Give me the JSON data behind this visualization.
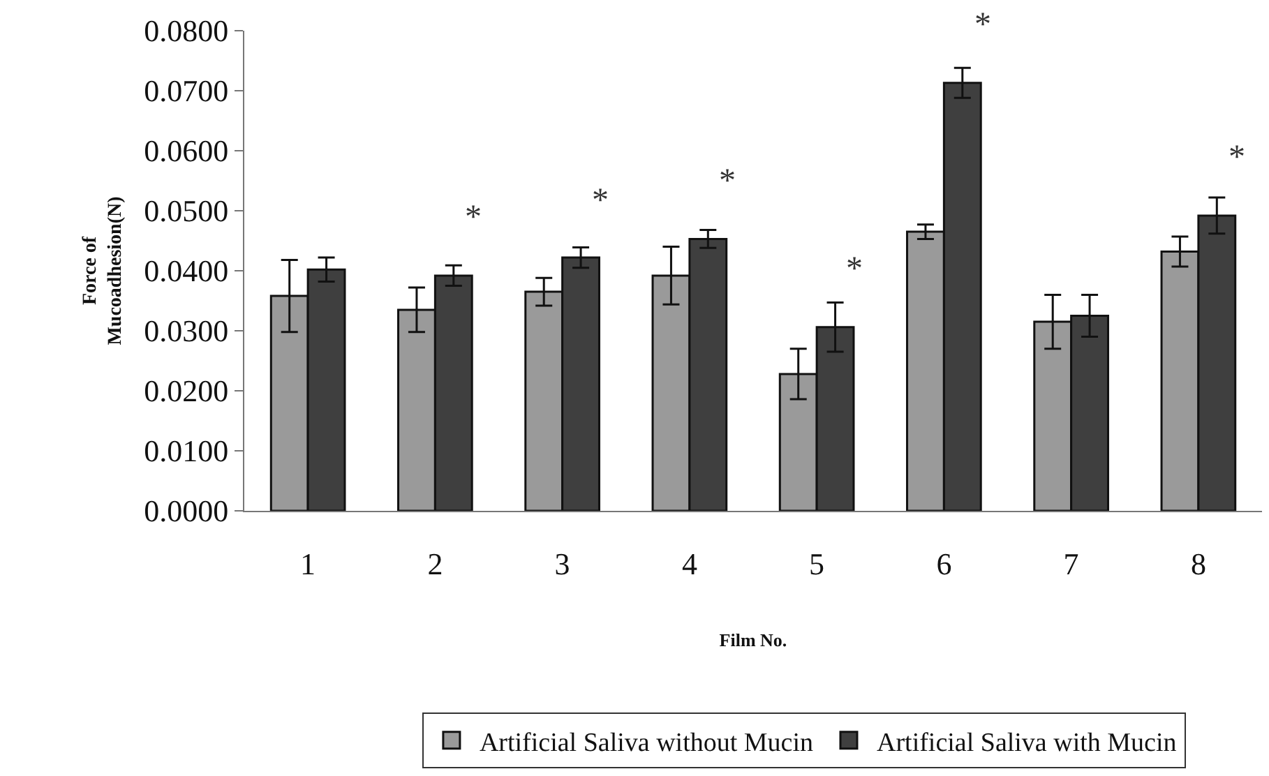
{
  "chart_data": {
    "type": "bar",
    "xlabel": "Film No.",
    "ylabel": "Force of Mucoadhesion(N)",
    "categories": [
      "1",
      "2",
      "3",
      "4",
      "5",
      "6",
      "7",
      "8"
    ],
    "series": [
      {
        "name": "Artificial Saliva without Mucin",
        "color": "#9a9a9a",
        "values": [
          0.0358,
          0.0335,
          0.0365,
          0.0392,
          0.0228,
          0.0465,
          0.0315,
          0.0432
        ],
        "errors": [
          0.006,
          0.0037,
          0.0023,
          0.0048,
          0.0042,
          0.0012,
          0.0045,
          0.0025
        ]
      },
      {
        "name": "Artificial Saliva with Mucin",
        "color": "#3f3f3f",
        "values": [
          0.0402,
          0.0392,
          0.0422,
          0.0453,
          0.0306,
          0.0713,
          0.0325,
          0.0492
        ],
        "errors": [
          0.002,
          0.0017,
          0.0017,
          0.0015,
          0.0041,
          0.0025,
          0.0035,
          0.003
        ]
      }
    ],
    "ylim": [
      0,
      0.08
    ],
    "yticks": [
      {
        "value": 0,
        "label": "0.0000"
      },
      {
        "value": 0.01,
        "label": "0.0100"
      },
      {
        "value": 0.02,
        "label": "0.0200"
      },
      {
        "value": 0.03,
        "label": "0.0300"
      },
      {
        "value": 0.04,
        "label": "0.0400"
      },
      {
        "value": 0.05,
        "label": "0.0500"
      },
      {
        "value": 0.06,
        "label": "0.0600"
      },
      {
        "value": 0.07,
        "label": "0.0700"
      },
      {
        "value": 0.08,
        "label": "0.0800"
      }
    ],
    "annotations": [
      {
        "text": "*",
        "x": "2",
        "y": 0.0392
      },
      {
        "text": "*",
        "x": "3",
        "y": 0.0422
      },
      {
        "text": "*",
        "x": "4",
        "y": 0.0453
      },
      {
        "text": "*",
        "x": "5",
        "y": 0.0306
      },
      {
        "text": "*",
        "x": "6",
        "y": 0.0713
      },
      {
        "text": "*",
        "x": "8",
        "y": 0.0492
      }
    ],
    "grid": false,
    "legend": "bottom"
  }
}
